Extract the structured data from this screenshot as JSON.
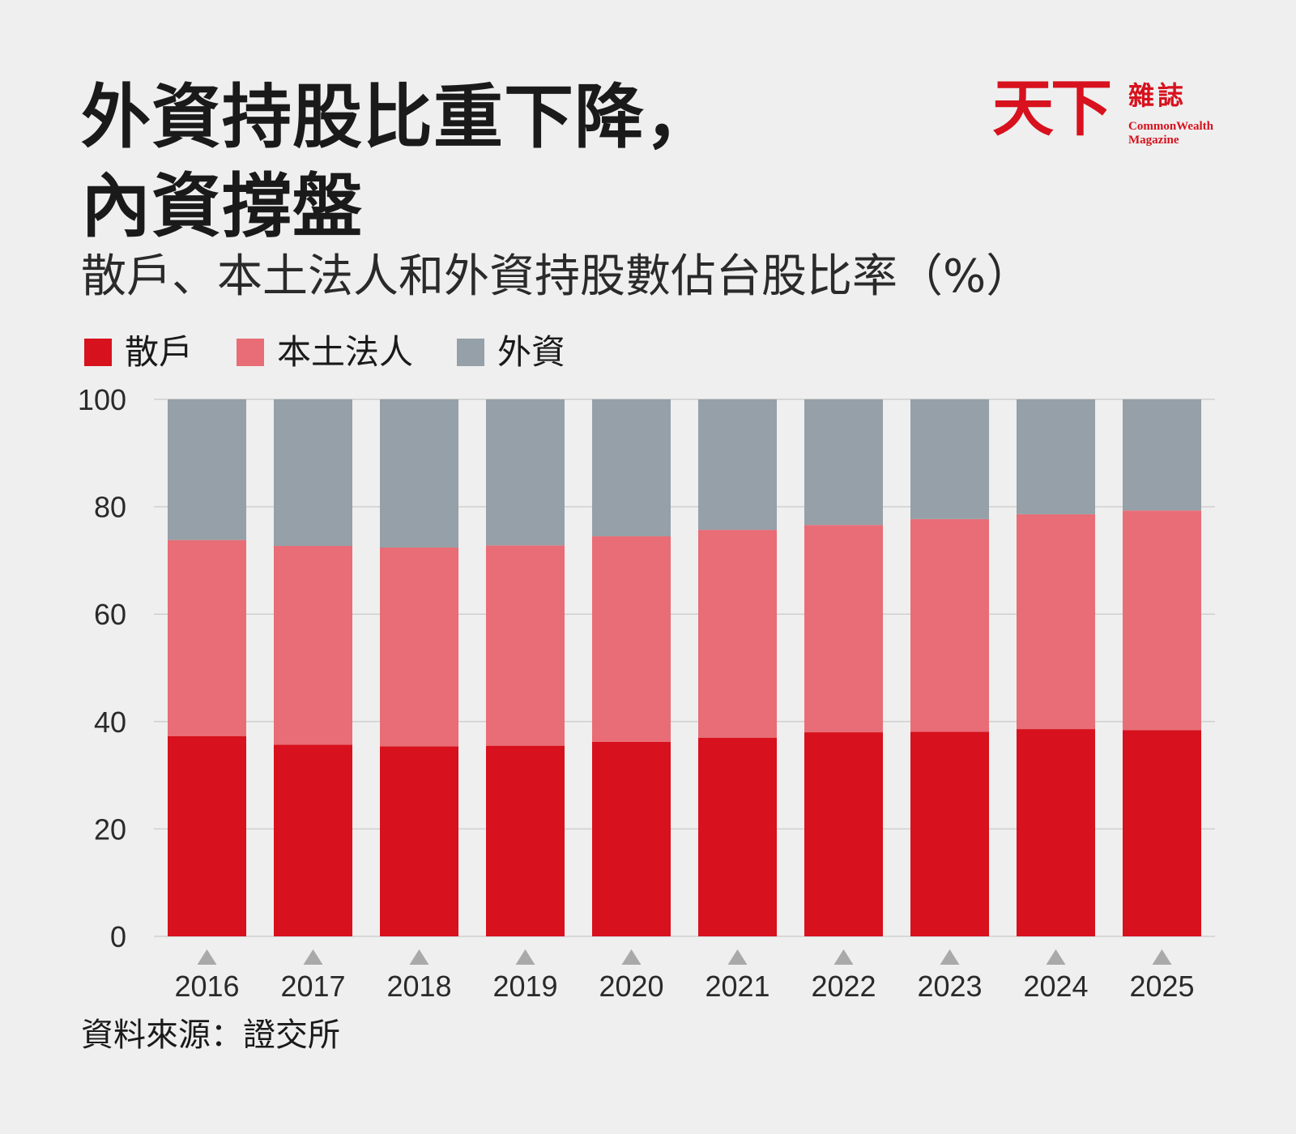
{
  "title": {
    "line1": "外資持股比重下降，",
    "line2": "內資撐盤"
  },
  "subtitle": "散戶、本土法人和外資持股數佔台股比率（%）",
  "logo": {
    "mark": "天下",
    "zazhi": "雜誌",
    "english_line1": "CommonWealth",
    "english_line2": "Magazine"
  },
  "legend": [
    {
      "label": "散戶",
      "color": "#d7111d"
    },
    {
      "label": "本土法人",
      "color": "#e86d76"
    },
    {
      "label": "外資",
      "color": "#95a0a8"
    }
  ],
  "source": "資料來源：證交所",
  "chart_data": {
    "type": "bar",
    "stacked": true,
    "categories": [
      "2016",
      "2017",
      "2018",
      "2019",
      "2020",
      "2021",
      "2022",
      "2023",
      "2024",
      "2025"
    ],
    "series": [
      {
        "name": "散戶",
        "color": "#d7111d",
        "values": [
          37.3,
          35.7,
          35.4,
          35.5,
          36.2,
          37.0,
          38.0,
          38.1,
          38.6,
          38.4
        ]
      },
      {
        "name": "本土法人",
        "color": "#e86d76",
        "values": [
          36.5,
          37.0,
          37.0,
          37.3,
          38.3,
          38.7,
          38.6,
          39.6,
          40.0,
          40.9
        ]
      },
      {
        "name": "外資",
        "color": "#95a0a8",
        "values": [
          26.2,
          27.3,
          27.6,
          27.2,
          25.5,
          24.3,
          23.4,
          22.3,
          21.4,
          20.7
        ]
      }
    ],
    "ylim": [
      0,
      100
    ],
    "yticks": [
      0,
      20,
      40,
      60,
      80,
      100
    ],
    "grid": true,
    "legend_position": "top-left",
    "xlabel": "",
    "ylabel": ""
  }
}
